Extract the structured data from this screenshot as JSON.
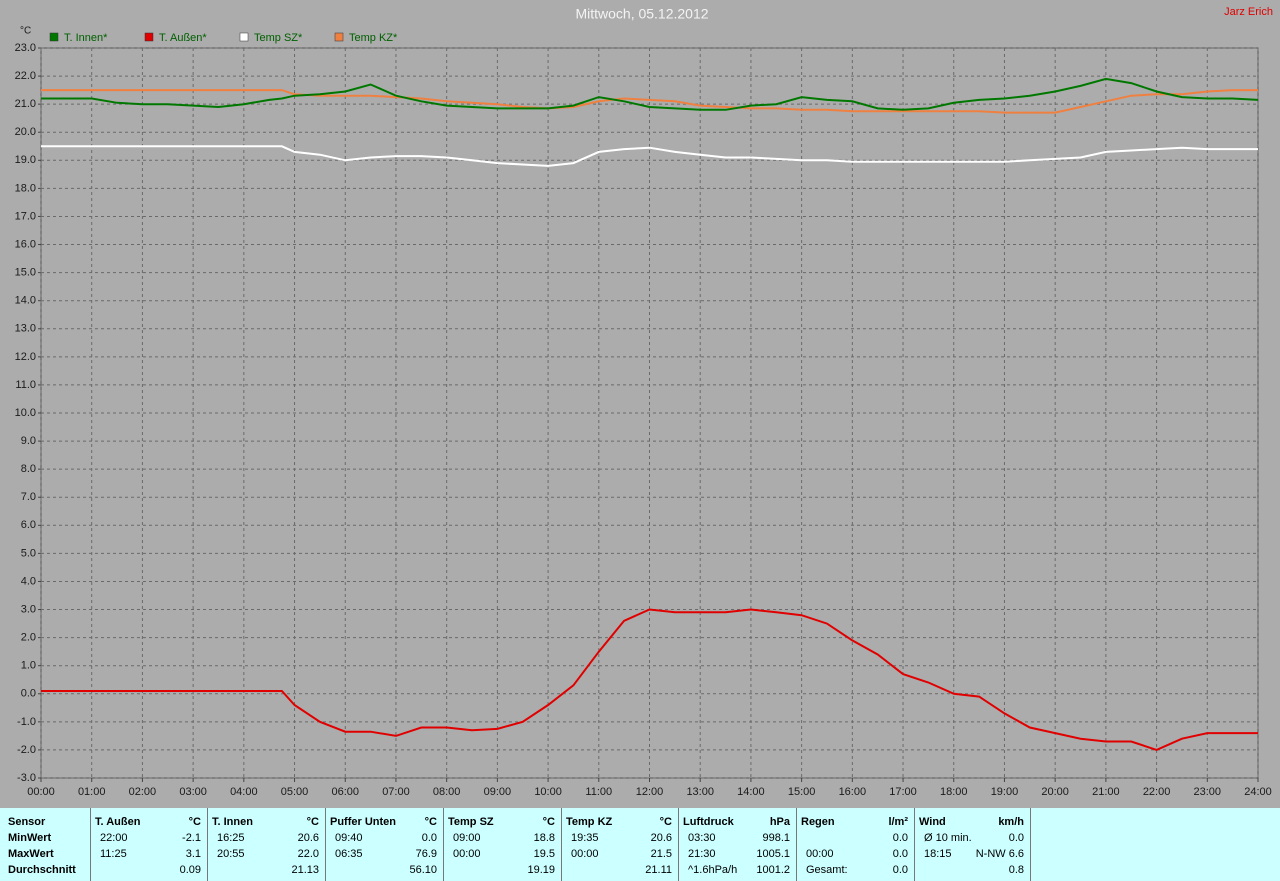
{
  "chart_data": {
    "type": "line",
    "title": "Mittwoch, 05.12.2012",
    "author": "Jarz Erich",
    "y_label": "°C",
    "x": [
      0,
      0.5,
      1,
      1.5,
      2,
      2.5,
      3,
      3.5,
      4,
      4.5,
      4.75,
      5,
      5.5,
      6,
      6.5,
      7,
      7.5,
      8,
      8.5,
      9,
      9.5,
      10,
      10.5,
      11,
      11.5,
      12,
      12.5,
      13,
      13.5,
      14,
      14.5,
      15,
      15.5,
      16,
      16.5,
      17,
      17.5,
      18,
      18.5,
      19,
      19.5,
      20,
      20.5,
      21,
      21.5,
      22,
      22.5,
      23,
      23.5,
      24
    ],
    "series": [
      {
        "name": "T. Innen*",
        "color": "#007800",
        "values": [
          21.2,
          21.2,
          21.2,
          21.05,
          21.0,
          21.0,
          20.95,
          20.9,
          21.0,
          21.15,
          21.2,
          21.3,
          21.35,
          21.45,
          21.7,
          21.3,
          21.1,
          20.95,
          20.9,
          20.85,
          20.85,
          20.85,
          20.95,
          21.25,
          21.1,
          20.9,
          20.85,
          20.8,
          20.8,
          20.95,
          21.0,
          21.25,
          21.15,
          21.1,
          20.85,
          20.8,
          20.85,
          21.05,
          21.15,
          21.2,
          21.3,
          21.45,
          21.65,
          21.9,
          21.75,
          21.45,
          21.25,
          21.2,
          21.2,
          21.15
        ]
      },
      {
        "name": "T. Außen*",
        "color": "#e00000",
        "values": [
          0.1,
          0.1,
          0.1,
          0.1,
          0.1,
          0.1,
          0.1,
          0.1,
          0.1,
          0.1,
          0.1,
          -0.4,
          -1.0,
          -1.35,
          -1.35,
          -1.5,
          -1.2,
          -1.2,
          -1.3,
          -1.25,
          -1.0,
          -0.4,
          0.3,
          1.5,
          2.6,
          3.0,
          2.9,
          2.9,
          2.9,
          3.0,
          2.9,
          2.8,
          2.5,
          1.9,
          1.4,
          0.7,
          0.4,
          0.0,
          -0.1,
          -0.7,
          -1.2,
          -1.4,
          -1.6,
          -1.7,
          -1.7,
          -2.0,
          -1.6,
          -1.4,
          -1.4,
          -1.4
        ]
      },
      {
        "name": "Temp SZ*",
        "color": "#ffffff",
        "values": [
          19.5,
          19.5,
          19.5,
          19.5,
          19.5,
          19.5,
          19.5,
          19.5,
          19.5,
          19.5,
          19.5,
          19.3,
          19.2,
          19.0,
          19.1,
          19.15,
          19.15,
          19.1,
          19.0,
          18.9,
          18.85,
          18.8,
          18.9,
          19.3,
          19.4,
          19.45,
          19.3,
          19.2,
          19.1,
          19.1,
          19.05,
          19.0,
          19.0,
          18.95,
          18.95,
          18.95,
          18.95,
          18.95,
          18.95,
          18.95,
          19.0,
          19.05,
          19.1,
          19.3,
          19.35,
          19.4,
          19.45,
          19.4,
          19.4,
          19.4
        ]
      },
      {
        "name": "Temp KZ*",
        "color": "#f08040",
        "values": [
          21.5,
          21.5,
          21.5,
          21.5,
          21.5,
          21.5,
          21.5,
          21.5,
          21.5,
          21.5,
          21.5,
          21.35,
          21.3,
          21.3,
          21.3,
          21.25,
          21.2,
          21.1,
          21.05,
          21.0,
          20.9,
          20.85,
          20.9,
          21.1,
          21.2,
          21.15,
          21.1,
          20.95,
          20.9,
          20.85,
          20.85,
          20.8,
          20.8,
          20.75,
          20.75,
          20.75,
          20.75,
          20.75,
          20.75,
          20.7,
          20.7,
          20.7,
          20.9,
          21.1,
          21.3,
          21.35,
          21.35,
          21.45,
          21.5,
          21.5
        ]
      }
    ],
    "xlim": [
      0,
      24
    ],
    "xticks": [
      {
        "value": 0,
        "label": "00:00"
      },
      {
        "value": 1,
        "label": "01:00"
      },
      {
        "value": 2,
        "label": "02:00"
      },
      {
        "value": 3,
        "label": "03:00"
      },
      {
        "value": 4,
        "label": "04:00"
      },
      {
        "value": 5,
        "label": "05:00"
      },
      {
        "value": 6,
        "label": "06:00"
      },
      {
        "value": 7,
        "label": "07:00"
      },
      {
        "value": 8,
        "label": "08:00"
      },
      {
        "value": 9,
        "label": "09:00"
      },
      {
        "value": 10,
        "label": "10:00"
      },
      {
        "value": 11,
        "label": "11:00"
      },
      {
        "value": 12,
        "label": "12:00"
      },
      {
        "value": 13,
        "label": "13:00"
      },
      {
        "value": 14,
        "label": "14:00"
      },
      {
        "value": 15,
        "label": "15:00"
      },
      {
        "value": 16,
        "label": "16:00"
      },
      {
        "value": 17,
        "label": "17:00"
      },
      {
        "value": 18,
        "label": "18:00"
      },
      {
        "value": 19,
        "label": "19:00"
      },
      {
        "value": 20,
        "label": "20:00"
      },
      {
        "value": 21,
        "label": "21:00"
      },
      {
        "value": 22,
        "label": "22:00"
      },
      {
        "value": 23,
        "label": "23:00"
      },
      {
        "value": 24,
        "label": "24:00"
      }
    ],
    "ylim": [
      -3,
      23
    ],
    "yticks": [
      {
        "value": -3,
        "label": "-3.0"
      },
      {
        "value": -2,
        "label": "-2.0"
      },
      {
        "value": -1,
        "label": "-1.0"
      },
      {
        "value": 0,
        "label": "0.0"
      },
      {
        "value": 1,
        "label": "1.0"
      },
      {
        "value": 2,
        "label": "2.0"
      },
      {
        "value": 3,
        "label": "3.0"
      },
      {
        "value": 4,
        "label": "4.0"
      },
      {
        "value": 5,
        "label": "5.0"
      },
      {
        "value": 6,
        "label": "6.0"
      },
      {
        "value": 7,
        "label": "7.0"
      },
      {
        "value": 8,
        "label": "8.0"
      },
      {
        "value": 9,
        "label": "9.0"
      },
      {
        "value": 10,
        "label": "10.0"
      },
      {
        "value": 11,
        "label": "11.0"
      },
      {
        "value": 12,
        "label": "12.0"
      },
      {
        "value": 13,
        "label": "13.0"
      },
      {
        "value": 14,
        "label": "14.0"
      },
      {
        "value": 15,
        "label": "15.0"
      },
      {
        "value": 16,
        "label": "16.0"
      },
      {
        "value": 17,
        "label": "17.0"
      },
      {
        "value": 18,
        "label": "18.0"
      },
      {
        "value": 19,
        "label": "19.0"
      },
      {
        "value": 20,
        "label": "20.0"
      },
      {
        "value": 21,
        "label": "21.0"
      },
      {
        "value": 22,
        "label": "22.0"
      },
      {
        "value": 23,
        "label": "23.0"
      }
    ],
    "grid": true
  },
  "table": {
    "row_labels": [
      "Sensor",
      "MinWert",
      "MaxWert",
      "Durchschnitt"
    ],
    "columns": [
      {
        "header": "T. Außen",
        "unit": "°C",
        "min": {
          "left": "22:00",
          "right": "-2.1"
        },
        "max": {
          "left": "11:25",
          "right": "3.1"
        },
        "avg": {
          "right": "0.09"
        }
      },
      {
        "header": "T. Innen",
        "unit": "°C",
        "min": {
          "left": "16:25",
          "right": "20.6"
        },
        "max": {
          "left": "20:55",
          "right": "22.0"
        },
        "avg": {
          "right": "21.13"
        }
      },
      {
        "header": "Puffer Unten",
        "unit": "°C",
        "min": {
          "left": "09:40",
          "right": "0.0"
        },
        "max": {
          "left": "06:35",
          "right": "76.9"
        },
        "avg": {
          "right": "56.10"
        }
      },
      {
        "header": "Temp SZ",
        "unit": "°C",
        "min": {
          "left": "09:00",
          "right": "18.8"
        },
        "max": {
          "left": "00:00",
          "right": "19.5"
        },
        "avg": {
          "right": "19.19"
        }
      },
      {
        "header": "Temp KZ",
        "unit": "°C",
        "min": {
          "left": "19:35",
          "right": "20.6"
        },
        "max": {
          "left": "00:00",
          "right": "21.5"
        },
        "avg": {
          "right": "21.11"
        }
      },
      {
        "header": "Luftdruck",
        "unit": "hPa",
        "min": {
          "left": "03:30",
          "right": "998.1"
        },
        "max": {
          "left": "21:30",
          "right": "1005.1"
        },
        "avg": {
          "left": "^1.6hPa/h",
          "right": "1001.2"
        }
      },
      {
        "header": "Regen",
        "unit": "l/m²",
        "min": {
          "right": "0.0"
        },
        "max": {
          "left": "00:00",
          "right": "0.0"
        },
        "avg": {
          "left": "Gesamt:",
          "right": "0.0"
        }
      },
      {
        "header": "Wind",
        "unit": "km/h",
        "min": {
          "left": "Ø 10 min.",
          "right": "0.0"
        },
        "max": {
          "left": "18:15",
          "right": "N-NW 6.6"
        },
        "avg": {
          "right": "0.8"
        }
      }
    ]
  }
}
